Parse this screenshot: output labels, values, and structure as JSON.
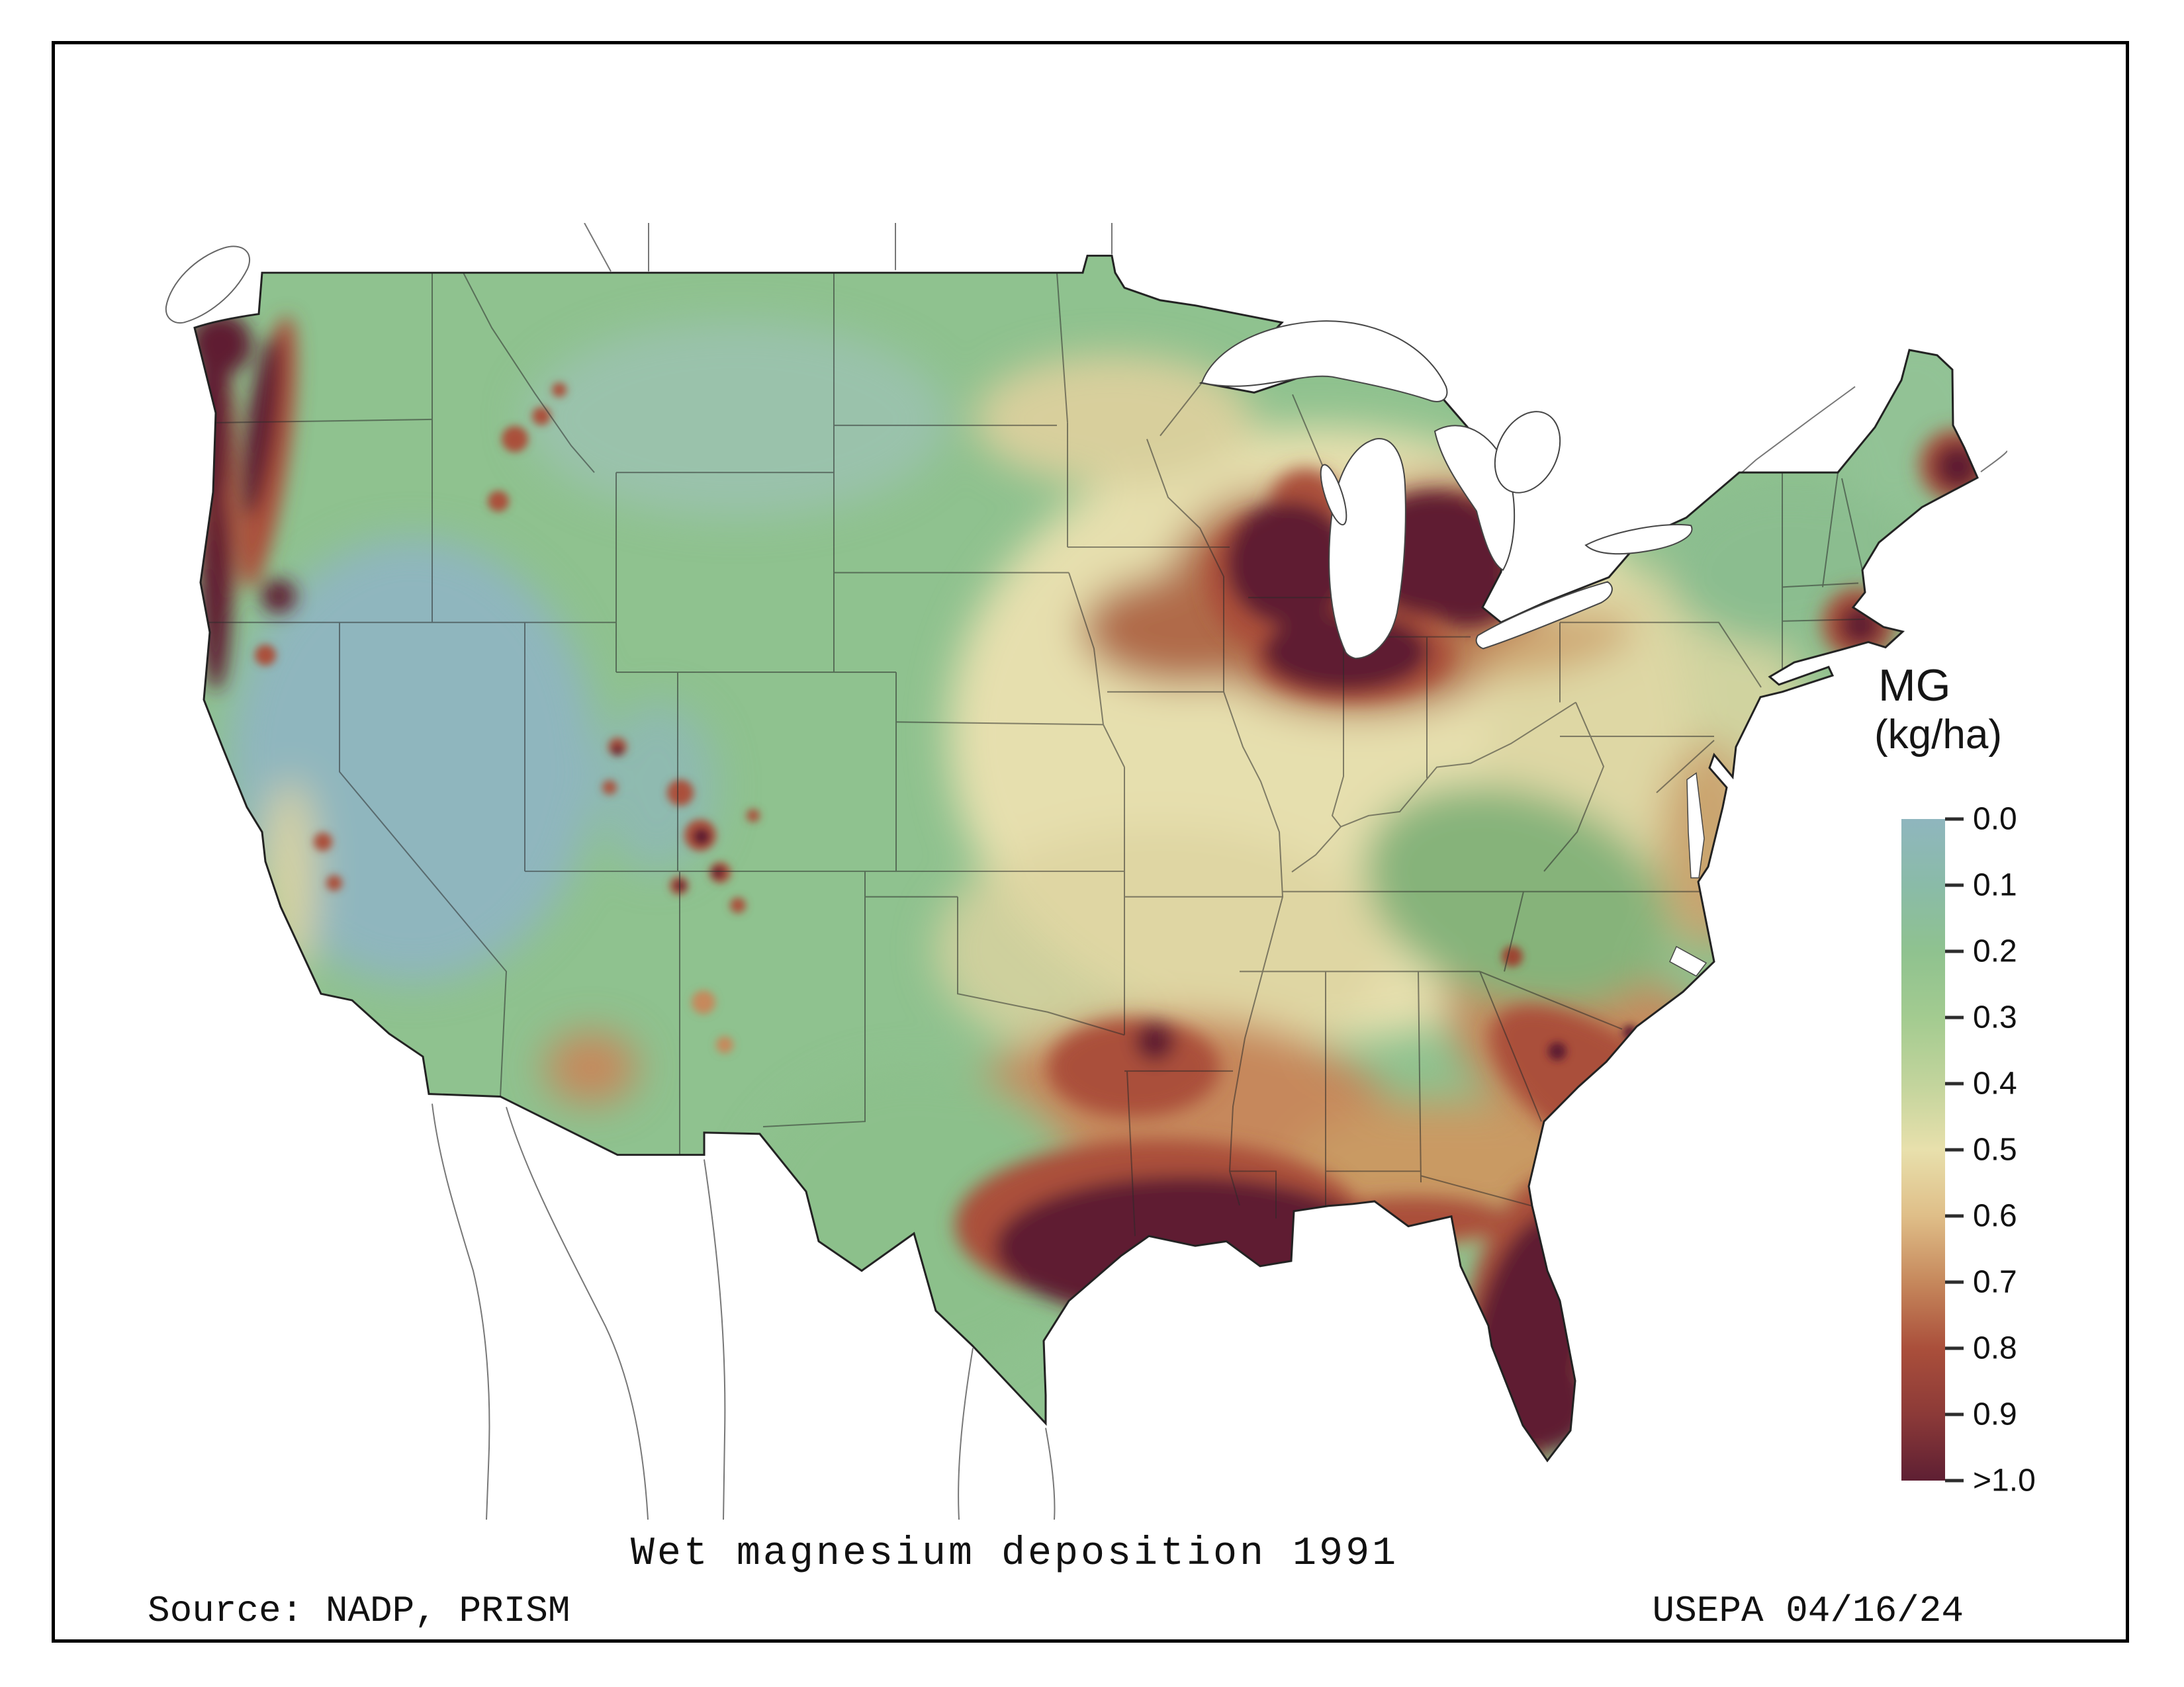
{
  "titles": {
    "map_title": "Wet magnesium deposition 1991",
    "source": "Source: NADP, PRISM",
    "credit": "USEPA 04/16/24"
  },
  "legend": {
    "title": "MG",
    "units": "(kg/ha)",
    "ticks": [
      "0.0",
      "0.1",
      "0.2",
      "0.3",
      "0.4",
      "0.5",
      "0.6",
      "0.7",
      "0.8",
      "0.9",
      ">1.0"
    ],
    "colors": [
      "#8fb6be",
      "#8abba8",
      "#8fc28f",
      "#a3cb90",
      "#c2d49c",
      "#e8e0ac",
      "#dfbe88",
      "#c6885c",
      "#aa4f3b",
      "#8c3a38",
      "#5e1f33"
    ]
  },
  "chart_data": {
    "type": "heatmap",
    "title": "Wet magnesium deposition 1991",
    "variable": "MG",
    "units": "kg/ha",
    "region": "Conterminous United States",
    "scale_min": 0.0,
    "scale_max": 1.0,
    "scale_ticks": [
      0.0,
      0.1,
      0.2,
      0.3,
      0.4,
      0.5,
      0.6,
      0.7,
      0.8,
      0.9,
      1.0
    ],
    "scale_top_label": ">1.0",
    "legend_position": "right",
    "high_deposition_regions_gt_1": [
      "Pacific Northwest coast and Cascades (WA/OR)",
      "Lake Michigan region (WI, MI, northern IL)",
      "Gulf Coast (TX, LA, MS, AL panhandle)",
      "Florida peninsula",
      "coastal Maine",
      "southern New England coast (MA)",
      "scattered Colorado/Utah Rockies peaks",
      "north Texas spot"
    ],
    "moderate_regions_0.6_0.9": [
      "Southeast Atlantic coastal plain (GA/SC/NC)",
      "Iowa-Illinois corridor",
      "central and east Texas",
      "southern Georgia and Alabama",
      "mid-Atlantic coast"
    ],
    "low_deposition_regions_lt_0.2": [
      "Great Basin (NV/UT)",
      "intermountain West",
      "northern Rockies plateaus"
    ],
    "source": "NADP, PRISM",
    "agency_date": "USEPA 04/16/24"
  }
}
